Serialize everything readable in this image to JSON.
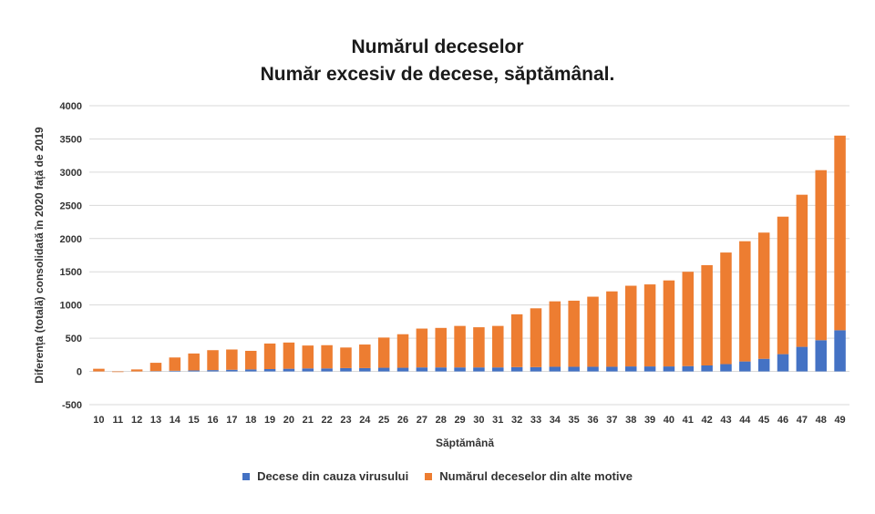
{
  "chart_data": {
    "type": "bar",
    "stacked": true,
    "title": "Numărul deceselor",
    "subtitle": "Număr excesiv de decese, săptămânal.",
    "xlabel": "Săptămână",
    "ylabel": "Diferența (totală) consolidată în 2020 față de 2019",
    "ylim": [
      -500,
      4000
    ],
    "yticks": [
      -500,
      0,
      500,
      1000,
      1500,
      2000,
      2500,
      3000,
      3500,
      4000
    ],
    "grid": true,
    "legend_position": "bottom",
    "categories": [
      "10",
      "11",
      "12",
      "13",
      "14",
      "15",
      "16",
      "17",
      "18",
      "19",
      "20",
      "21",
      "22",
      "23",
      "24",
      "25",
      "26",
      "27",
      "28",
      "29",
      "30",
      "31",
      "32",
      "33",
      "34",
      "35",
      "36",
      "37",
      "38",
      "39",
      "40",
      "41",
      "42",
      "43",
      "44",
      "45",
      "46",
      "47",
      "48",
      "49"
    ],
    "series": [
      {
        "name": "Decese din cauza virusului",
        "color": "#4472C4",
        "values": [
          0,
          0,
          0,
          5,
          10,
          15,
          20,
          25,
          30,
          35,
          40,
          45,
          45,
          50,
          50,
          55,
          55,
          60,
          60,
          60,
          60,
          60,
          65,
          65,
          70,
          70,
          70,
          70,
          75,
          75,
          75,
          80,
          90,
          110,
          150,
          190,
          260,
          370,
          470,
          620
        ]
      },
      {
        "name": "Numărul deceselor din alte motive",
        "color": "#ED7D31",
        "values": [
          40,
          -10,
          30,
          125,
          200,
          255,
          300,
          305,
          280,
          385,
          395,
          345,
          350,
          310,
          355,
          455,
          505,
          585,
          595,
          625,
          605,
          625,
          795,
          885,
          985,
          995,
          1055,
          1135,
          1215,
          1235,
          1295,
          1420,
          1510,
          1680,
          1810,
          1900,
          2070,
          2290,
          2560,
          2930
        ]
      }
    ]
  }
}
